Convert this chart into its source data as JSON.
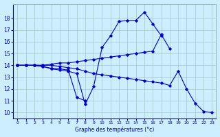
{
  "xlabel": "Graphe des températures (°c)",
  "background_color": "#cceeff",
  "line_color": "#0000cc",
  "xlim": [
    -0.5,
    23.5
  ],
  "ylim": [
    9.5,
    19.2
  ],
  "yticks": [
    10,
    11,
    12,
    13,
    14,
    15,
    16,
    17,
    18
  ],
  "xticks": [
    0,
    1,
    2,
    3,
    4,
    5,
    6,
    7,
    8,
    9,
    10,
    11,
    12,
    13,
    14,
    15,
    16,
    17,
    18,
    19,
    20,
    21,
    22,
    23
  ],
  "series": [
    {
      "x": [
        0,
        1,
        2,
        3,
        4,
        5,
        6,
        7,
        8,
        9,
        10,
        11,
        12,
        13,
        14,
        15,
        16,
        17
      ],
      "y": [
        14,
        14,
        14,
        13.9,
        13.7,
        13.6,
        13.5,
        13.3,
        10.7,
        12.2,
        15.5,
        16.5,
        17.7,
        17.8,
        17.8,
        18.5,
        17.5,
        16.5
      ]
    },
    {
      "x": [
        0,
        1,
        2,
        3,
        4,
        5,
        6,
        7,
        8
      ],
      "y": [
        14,
        14,
        14,
        13.9,
        13.75,
        13.7,
        13.6,
        11.3,
        11.0
      ]
    },
    {
      "x": [
        0,
        1,
        2,
        3,
        4,
        5,
        6,
        7,
        8,
        9,
        10,
        11,
        12,
        13,
        14,
        15,
        16,
        17,
        18
      ],
      "y": [
        14,
        14,
        14,
        14,
        14.1,
        14.2,
        14.2,
        14.3,
        14.4,
        14.5,
        14.6,
        14.7,
        14.8,
        14.9,
        15.0,
        15.1,
        15.2,
        16.6,
        15.4
      ]
    },
    {
      "x": [
        0,
        1,
        2,
        3,
        4,
        5,
        6,
        7,
        8,
        9,
        10,
        11,
        12,
        13,
        14,
        15,
        16,
        17,
        18,
        19,
        20,
        21,
        22,
        23
      ],
      "y": [
        14,
        14,
        14,
        14,
        14,
        13.9,
        13.8,
        13.7,
        13.5,
        13.3,
        13.2,
        13.1,
        13.0,
        12.9,
        12.8,
        12.7,
        12.6,
        12.5,
        12.3,
        13.5,
        12.0,
        10.8,
        10.1,
        10.0
      ]
    }
  ]
}
